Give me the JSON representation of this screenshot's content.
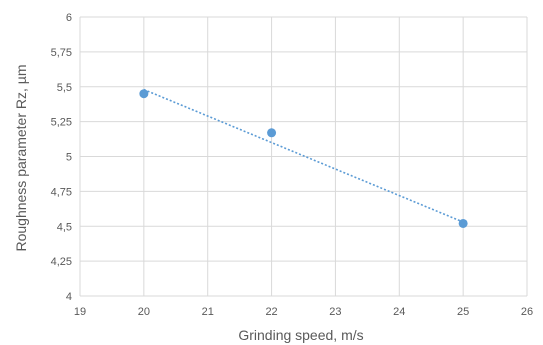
{
  "chart_data": {
    "type": "scatter",
    "title": "",
    "xlabel": "Grinding speed, m/s",
    "ylabel": "Roughness parameter Rz, µm",
    "xlim": [
      19,
      26
    ],
    "ylim": [
      4,
      6
    ],
    "x_ticks": [
      "19",
      "20",
      "21",
      "22",
      "23",
      "24",
      "25",
      "26"
    ],
    "y_ticks": [
      "4",
      "4,25",
      "4,5",
      "4,75",
      "5",
      "5,25",
      "5,5",
      "5,75",
      "6"
    ],
    "grid": true,
    "legend": "none",
    "series": [
      {
        "points": [
          {
            "x": 20,
            "y": 5.45
          },
          {
            "x": 22,
            "y": 5.17
          },
          {
            "x": 25,
            "y": 4.52
          }
        ],
        "color": "#5B9BD5"
      }
    ],
    "trendline": {
      "style": "dotted",
      "color": "#5B9BD5",
      "x": [
        20,
        25
      ],
      "y": [
        5.48,
        4.53
      ]
    }
  }
}
